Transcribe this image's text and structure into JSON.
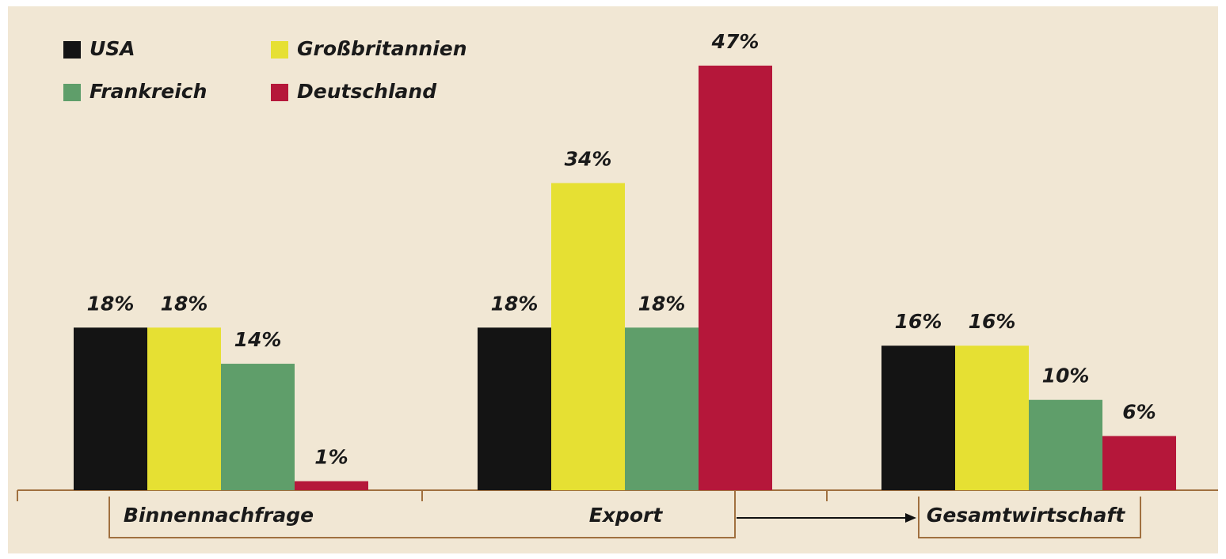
{
  "chart_data": {
    "type": "bar",
    "categories": [
      "Binnennachfrage",
      "Export",
      "Gesamtwirtschaft"
    ],
    "series": [
      {
        "name": "USA",
        "color": "#141414",
        "values": [
          18,
          18,
          16
        ],
        "value_labels": [
          "18%",
          "18%",
          "16%"
        ]
      },
      {
        "name": "Großbritannien",
        "color": "#e6e033",
        "values": [
          18,
          34,
          16
        ],
        "value_labels": [
          "18%",
          "34%",
          "16%"
        ]
      },
      {
        "name": "Frankreich",
        "color": "#5f9e6a",
        "values": [
          14,
          18,
          10
        ],
        "value_labels": [
          "14%",
          "18%",
          "10%"
        ]
      },
      {
        "name": "Deutschland",
        "color": "#b5173a",
        "values": [
          1,
          47,
          6
        ],
        "value_labels": [
          "1%",
          "47%",
          "6%"
        ]
      }
    ]
  }
}
